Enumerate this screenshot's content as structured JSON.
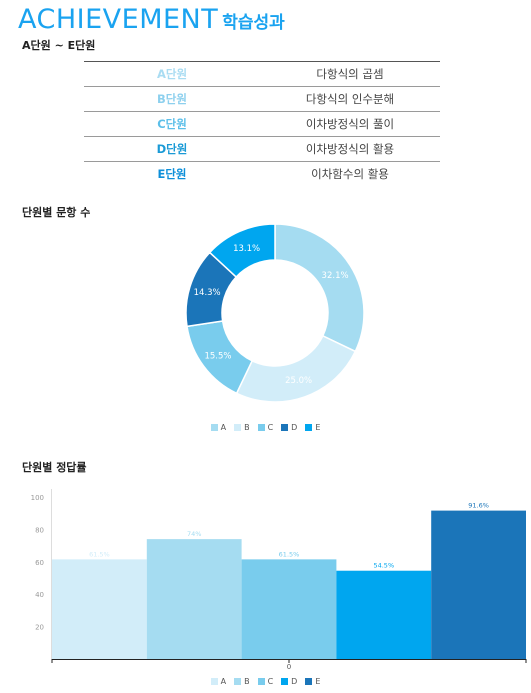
{
  "header": {
    "title_en": "ACHIEVEMENT",
    "title_ko": "학습성과",
    "subtitle": "A단원 ~ E단원"
  },
  "units": [
    {
      "label": "A단원",
      "name": "다항식의 곱셈",
      "color": "#a9dcf2"
    },
    {
      "label": "B단원",
      "name": "다항식의 인수분해",
      "color": "#8dd0ee"
    },
    {
      "label": "C단원",
      "name": "이차방정식의 풀이",
      "color": "#5cbfe9"
    },
    {
      "label": "D단원",
      "name": "이차방정식의 활용",
      "color": "#1a9ad6"
    },
    {
      "label": "E단원",
      "name": "이차함수의 활용",
      "color": "#0d8fd9"
    }
  ],
  "chart_data": [
    {
      "type": "pie",
      "title": "단원별 문항 수",
      "categories": [
        "A",
        "B",
        "C",
        "D",
        "E"
      ],
      "values": [
        32.1,
        25.0,
        15.5,
        14.3,
        13.1
      ],
      "value_labels": [
        "32.1%",
        "25.0%",
        "15.5%",
        "14.3%",
        "13.1%"
      ],
      "colors": [
        "#a5dcf1",
        "#d2edf9",
        "#79cced",
        "#1b75b9",
        "#00a6ef"
      ],
      "label_colors": [
        "#ffffff",
        "#ffffff",
        "#ffffff",
        "#ffffff",
        "#ffffff"
      ],
      "legend": "bottom"
    },
    {
      "type": "bar",
      "title": "단원별 정답률",
      "categories": [
        "A",
        "B",
        "C",
        "D",
        "E"
      ],
      "values": [
        61.5,
        74,
        61.5,
        54.5,
        91.6
      ],
      "value_labels": [
        "61.5%",
        "74%",
        "61.5%",
        "54.5%",
        "91.6%"
      ],
      "colors": [
        "#d2edf9",
        "#a5dcf1",
        "#79cced",
        "#00a6ef",
        "#1b75b9"
      ],
      "label_colors": [
        "#d2edf9",
        "#a5dcf1",
        "#79cced",
        "#00a6ef",
        "#1b75b9"
      ],
      "ylim": [
        0,
        100
      ],
      "yticks": [
        20,
        40,
        60,
        80,
        100
      ],
      "xtick_label": "0",
      "legend": "bottom"
    }
  ]
}
